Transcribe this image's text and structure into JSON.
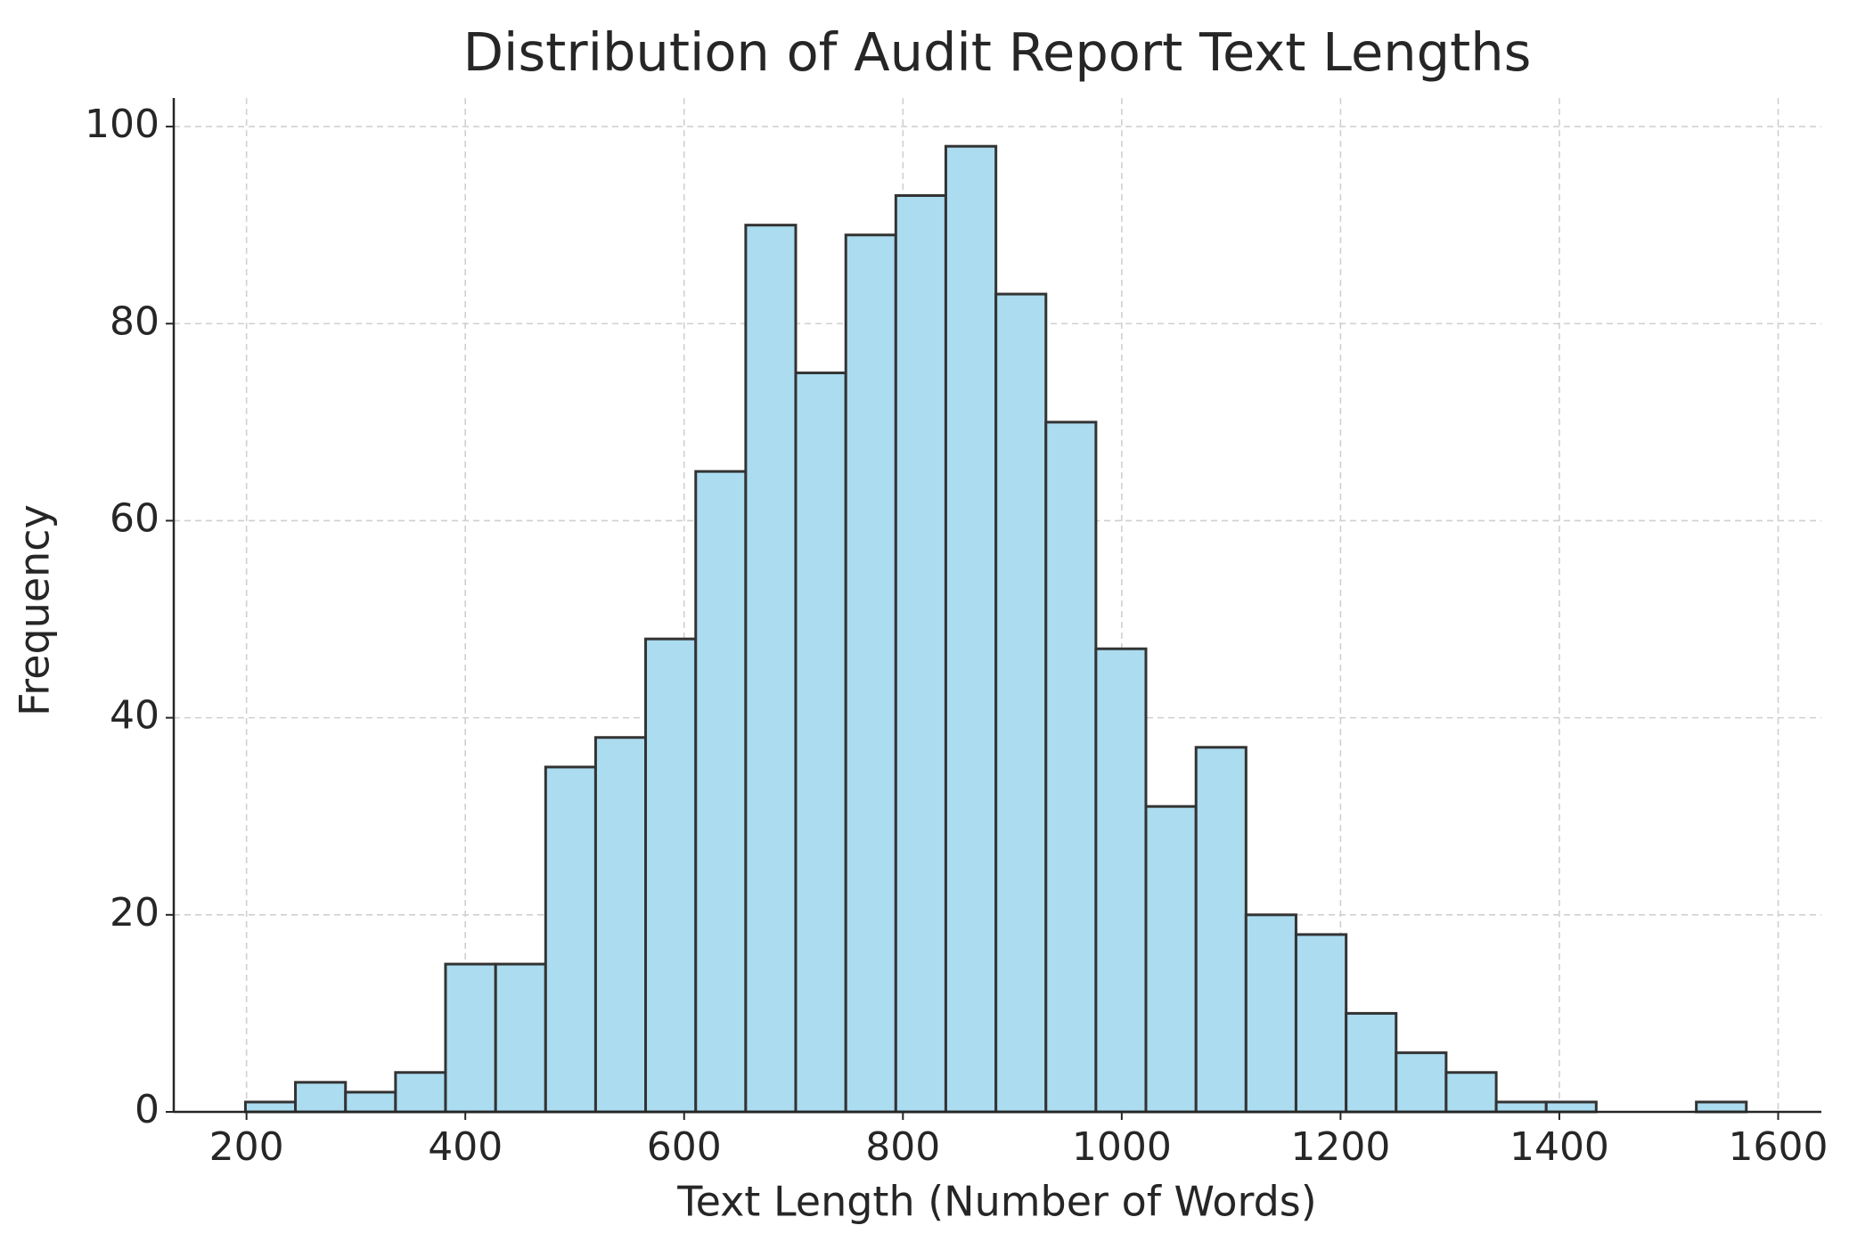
{
  "chart_data": {
    "type": "histogram",
    "title": "Distribution of Audit Report Text Lengths",
    "x_label": "Text Length (Number of Words)",
    "y_label": "Frequency",
    "bins": [
      199,
      244.7,
      290.5,
      336.2,
      381.9,
      427.7,
      473.4,
      519.1,
      564.8,
      610.6,
      656.3,
      702.0,
      747.8,
      793.5,
      839.2,
      885.0,
      930.7,
      976.4,
      1022.1,
      1067.9,
      1113.6,
      1159.3,
      1205.1,
      1250.8,
      1296.5,
      1342.3,
      1388.0,
      1433.7,
      1479.4,
      1525.2,
      1570.9
    ],
    "counts": [
      1,
      3,
      2,
      4,
      15,
      15,
      35,
      38,
      48,
      65,
      90,
      75,
      89,
      93,
      98,
      83,
      70,
      47,
      31,
      37,
      20,
      18,
      10,
      6,
      4,
      1,
      1,
      0,
      0,
      1
    ],
    "color": "#abdcf0",
    "edgecolor": "#333333",
    "xlim": [
      133.5,
      1639.5
    ],
    "ylim": [
      0,
      102.9
    ],
    "xticks": [
      200,
      400,
      600,
      800,
      1000,
      1200,
      1400,
      1600
    ],
    "yticks": [
      0,
      20,
      40,
      60,
      80,
      100
    ],
    "grid": true
  }
}
